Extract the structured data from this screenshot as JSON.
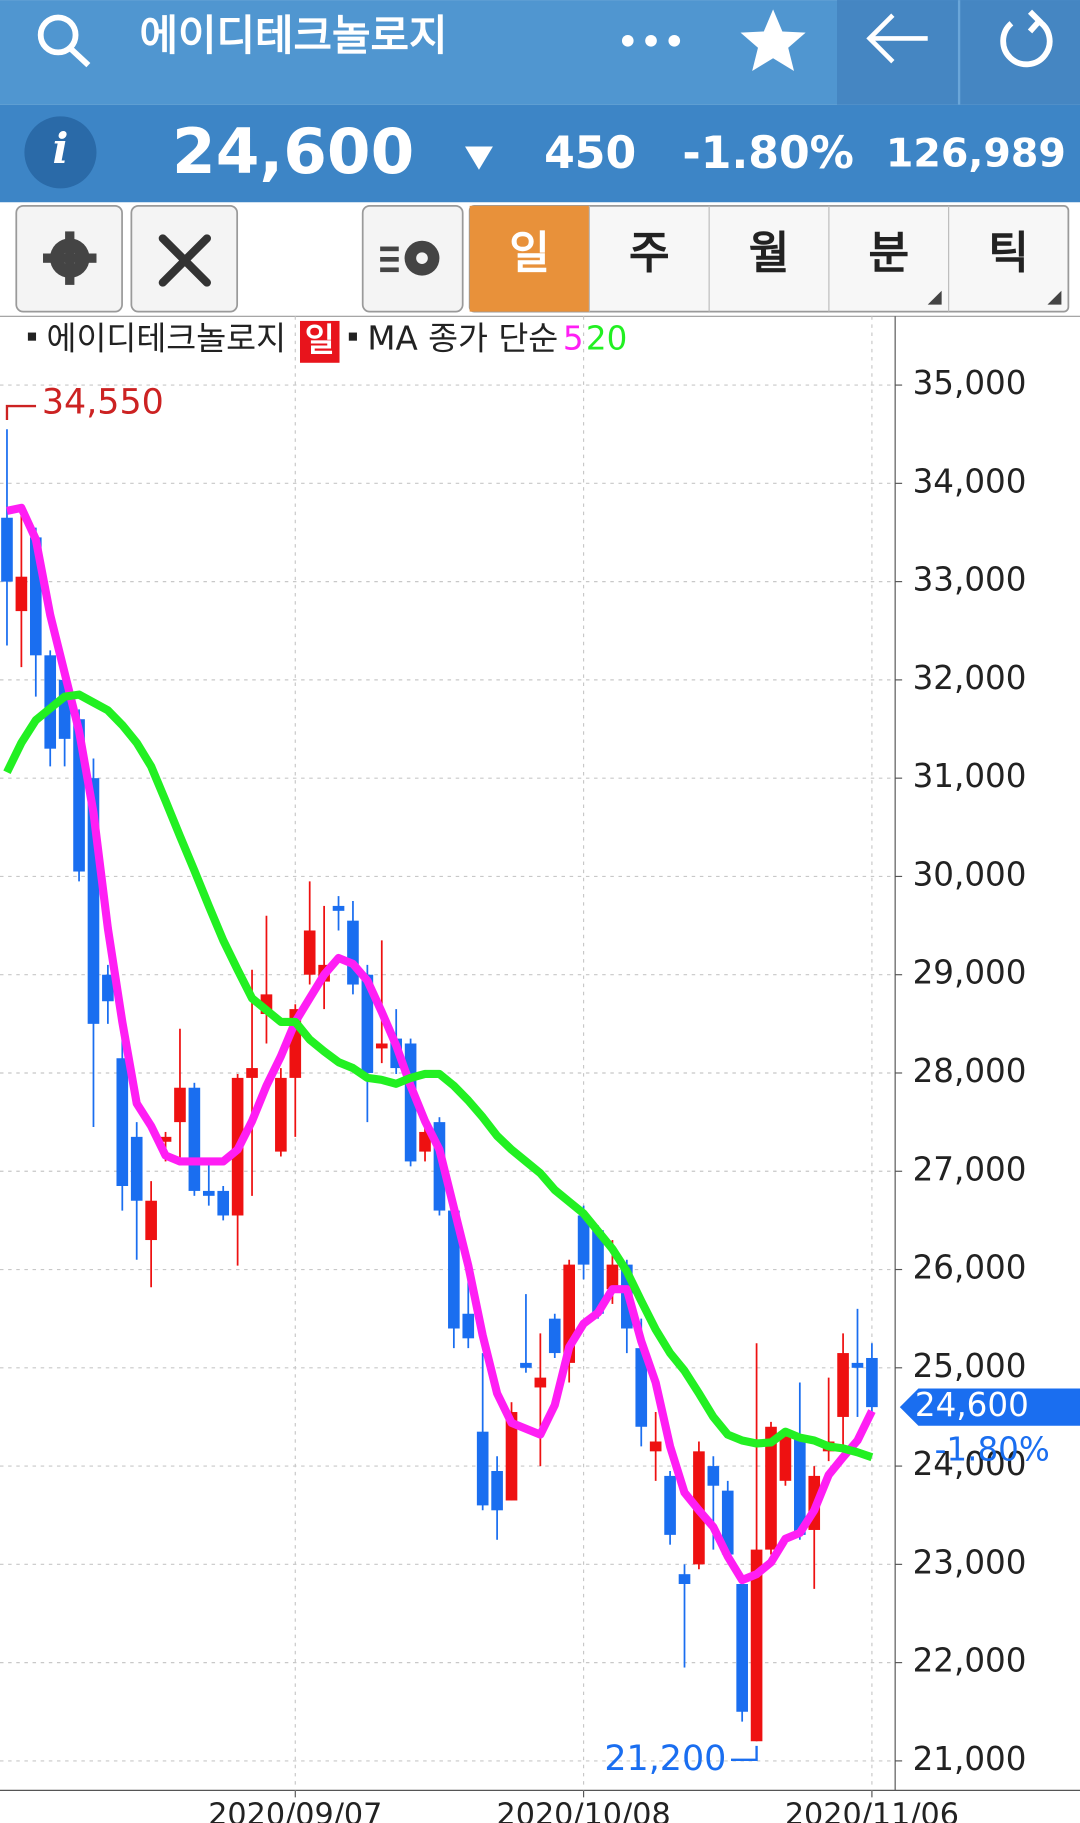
{
  "header": {
    "title": "에이디테크놀로지"
  },
  "quote": {
    "info": "i",
    "price": "24,600",
    "change": "450",
    "change_pct": "-1.80%",
    "volume": "126,989"
  },
  "tabs": [
    "일",
    "주",
    "월",
    "분",
    "틱"
  ],
  "chart_data": {
    "type": "candlestick",
    "legend": {
      "name": "에이디테크놀로지",
      "period": "일",
      "ma": "MA 종가 단순"
    },
    "categories": [
      null,
      null,
      null,
      null,
      null,
      null,
      null,
      null,
      null,
      null,
      null,
      null,
      null,
      null,
      null,
      null,
      null,
      null,
      null,
      null,
      "2020/09/07",
      null,
      null,
      null,
      null,
      null,
      null,
      null,
      null,
      null,
      null,
      null,
      null,
      null,
      null,
      null,
      null,
      null,
      null,
      null,
      "2020/10/08",
      null,
      null,
      null,
      null,
      null,
      null,
      null,
      null,
      null,
      null,
      null,
      null,
      null,
      null,
      null,
      null,
      null,
      null,
      null,
      "2020/11/06"
    ],
    "open": [
      33650,
      32700,
      33450,
      32250,
      32000,
      31600,
      31000,
      29000,
      28150,
      27350,
      26300,
      27300,
      27500,
      27850,
      26800,
      26800,
      26550,
      27950,
      28600,
      27200,
      27950,
      29000,
      28930,
      29700,
      29550,
      29000,
      28250,
      28350,
      28300,
      27200,
      27500,
      26600,
      25550,
      24350,
      23950,
      23650,
      25050,
      24800,
      25500,
      25050,
      26550,
      26400,
      25800,
      26050,
      25200,
      24150,
      23900,
      22900,
      23000,
      24000,
      23750,
      22800,
      21200,
      23150,
      23850,
      24300,
      23350,
      24150,
      24500,
      25050,
      25100
    ],
    "high": [
      34550,
      33720,
      33550,
      32300,
      32050,
      31700,
      31200,
      29100,
      28500,
      27500,
      26900,
      27400,
      28450,
      27900,
      27100,
      26850,
      27990,
      29050,
      29600,
      28050,
      28700,
      29950,
      29700,
      29800,
      29750,
      29100,
      29350,
      28650,
      28350,
      27500,
      27550,
      26700,
      26050,
      25150,
      24100,
      24650,
      25750,
      25350,
      25550,
      26100,
      26650,
      26450,
      26300,
      26100,
      25500,
      24550,
      23950,
      23000,
      24250,
      24100,
      23850,
      22900,
      25250,
      24450,
      24350,
      24850,
      24000,
      24900,
      25350,
      25600,
      25250
    ],
    "low": [
      32350,
      32130,
      31830,
      31120,
      31120,
      29950,
      27450,
      28500,
      26600,
      26100,
      25820,
      27100,
      27100,
      26750,
      26650,
      26500,
      26040,
      26750,
      28300,
      27150,
      27350,
      28900,
      28650,
      29450,
      28800,
      27500,
      28100,
      27990,
      27050,
      27100,
      26550,
      25200,
      25200,
      23550,
      23250,
      23650,
      24950,
      24000,
      25100,
      24850,
      25900,
      25500,
      25650,
      25150,
      24200,
      23850,
      23200,
      21950,
      22950,
      23150,
      23050,
      21400,
      21200,
      23100,
      23800,
      23250,
      22750,
      24050,
      24050,
      24500,
      24550
    ],
    "close": [
      33000,
      33050,
      32250,
      31300,
      31400,
      30050,
      28500,
      28730,
      26850,
      26700,
      26700,
      27350,
      27850,
      26800,
      26750,
      26550,
      27950,
      28050,
      28800,
      27950,
      28650,
      29450,
      29100,
      29650,
      28900,
      28000,
      28300,
      28050,
      27100,
      27400,
      26600,
      25400,
      25300,
      23600,
      23550,
      24550,
      25000,
      24900,
      25150,
      26050,
      26050,
      25550,
      26050,
      25400,
      24400,
      24250,
      23300,
      22800,
      24150,
      23800,
      23100,
      21500,
      23150,
      24400,
      24300,
      23300,
      23900,
      24250,
      25150,
      25000,
      24600
    ],
    "up_color": "#ee1111",
    "down_color": "#1a6ef0",
    "series": [
      {
        "name": "5",
        "color": "#ff1ef4",
        "values": [
          33720,
          33750,
          33430,
          32660,
          32070,
          31480,
          30650,
          29470,
          28520,
          27690,
          27460,
          27160,
          27100,
          27100,
          27100,
          27100,
          27220,
          27510,
          27870,
          28170,
          28520,
          28760,
          29000,
          29170,
          29110,
          28940,
          28620,
          28280,
          27870,
          27510,
          27220,
          26630,
          26040,
          25330,
          24740,
          24440,
          24380,
          24320,
          24620,
          25210,
          25450,
          25560,
          25800,
          25800,
          25270,
          24850,
          24200,
          23730,
          23550,
          23380,
          23080,
          22840,
          22900,
          23020,
          23260,
          23320,
          23550,
          23910,
          24090,
          24260,
          24560
        ]
      },
      {
        "name": "20",
        "color": "#22f022",
        "values": [
          31060,
          31360,
          31590,
          31710,
          31830,
          31850,
          31770,
          31690,
          31540,
          31360,
          31120,
          30770,
          30410,
          30060,
          29700,
          29350,
          29050,
          28760,
          28640,
          28520,
          28520,
          28340,
          28220,
          28110,
          28050,
          27950,
          27930,
          27890,
          27950,
          27990,
          27990,
          27870,
          27720,
          27550,
          27360,
          27220,
          27100,
          26980,
          26810,
          26690,
          26570,
          26390,
          26210,
          25980,
          25680,
          25390,
          25150,
          24970,
          24740,
          24500,
          24320,
          24260,
          24230,
          24240,
          24350,
          24290,
          24260,
          24200,
          24180,
          24140,
          24090
        ]
      }
    ],
    "ylim": [
      20700,
      35700
    ],
    "yticks": [
      {
        "value": 21000,
        "label": "21,000"
      },
      {
        "value": 22000,
        "label": "22,000"
      },
      {
        "value": 23000,
        "label": "23,000"
      },
      {
        "value": 24000,
        "label": "24,000"
      },
      {
        "value": 25000,
        "label": "25,000"
      },
      {
        "value": 26000,
        "label": "26,000"
      },
      {
        "value": 27000,
        "label": "27,000"
      },
      {
        "value": 28000,
        "label": "28,000"
      },
      {
        "value": 29000,
        "label": "29,000"
      },
      {
        "value": 30000,
        "label": "30,000"
      },
      {
        "value": 31000,
        "label": "31,000"
      },
      {
        "value": 32000,
        "label": "32,000"
      },
      {
        "value": 33000,
        "label": "33,000"
      },
      {
        "value": 34000,
        "label": "34,000"
      },
      {
        "value": 35000,
        "label": "35,000"
      }
    ],
    "grid": true,
    "max_label": "34,550",
    "min_label": "21,200",
    "last_label": "24,600",
    "last_change": "-1.80%"
  }
}
